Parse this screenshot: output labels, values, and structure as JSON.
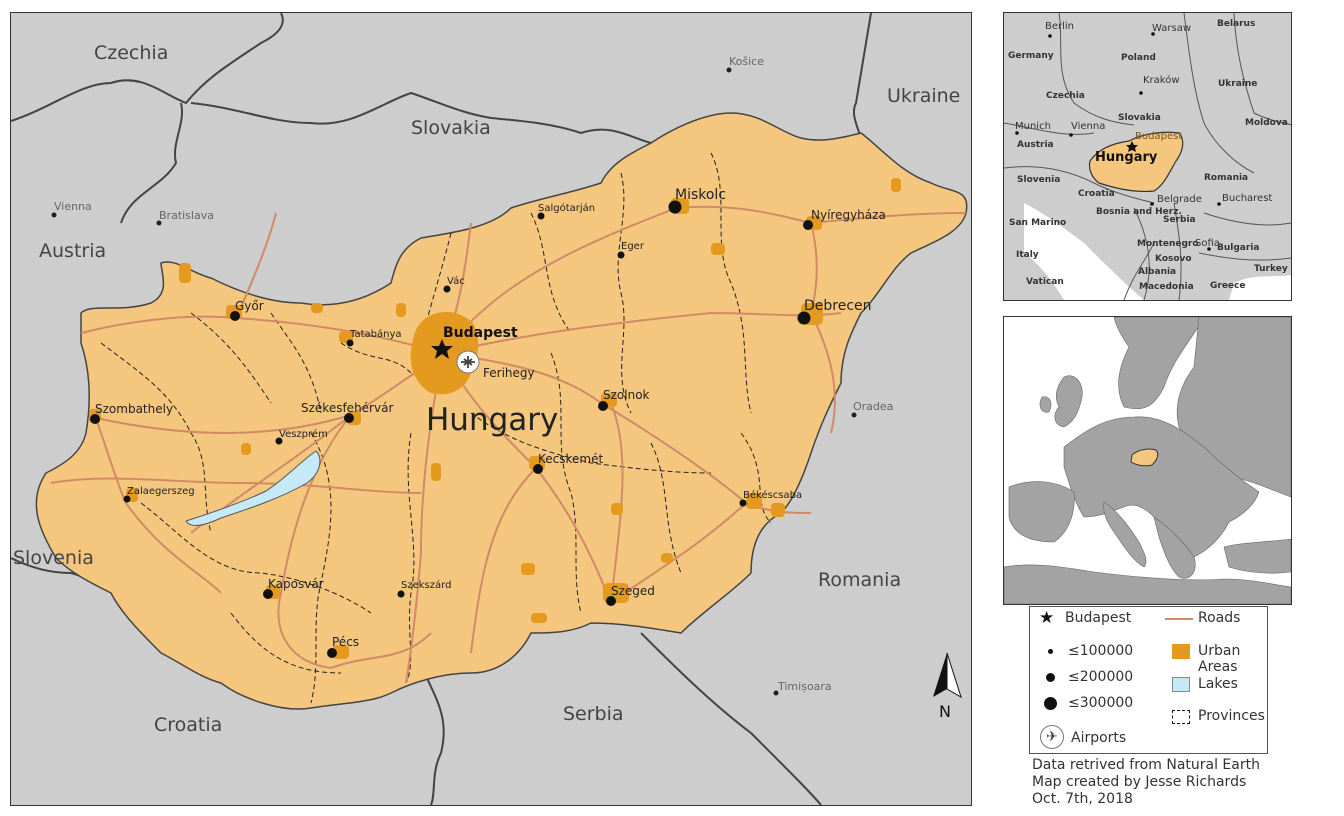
{
  "main_map": {
    "countries": {
      "czechia": "Czechia",
      "slovakia": "Slovakia",
      "ukraine": "Ukraine",
      "austria": "Austria",
      "slovenia": "Slovenia",
      "croatia": "Croatia",
      "serbia": "Serbia",
      "romania": "Romania",
      "hungary": "Hungary"
    },
    "foreign_cities": {
      "kosice": "Košice",
      "vienna": "Vienna",
      "bratislava": "Bratislava",
      "oradea": "Oradea",
      "timisoara": "Timișoara"
    },
    "capital": "Budapest",
    "airport": "Ferihegy",
    "cities": {
      "miskolc": "Miskolc",
      "debrecen": "Debrecen",
      "nyiregyhaza": "Nyíregyháza",
      "salgotarjan": "Salgótarján",
      "eger": "Eger",
      "vac": "Vác",
      "gyor": "Győr",
      "tatabanya": "Tatabánya",
      "szekesfehervar": "Székesfehérvár",
      "veszprem": "Veszprém",
      "szombathely": "Szombathely",
      "zalaegerszeg": "Zalaegerszeg",
      "szolnok": "Szolnok",
      "kecskemet": "Kecskemét",
      "bekescsaba": "Békéscsaba",
      "szeged": "Szeged",
      "kaposvar": "Kaposvár",
      "szekszard": "Szekszárd",
      "pecs": "Pécs"
    },
    "north_label": "N"
  },
  "inset_region": {
    "labels": {
      "berlin": "Berlin",
      "warsaw": "Warsaw",
      "belarus": "Belarus",
      "germany": "Germany",
      "poland": "Poland",
      "czechia": "Czechia",
      "krakow": "Kraków",
      "ukraine": "Ukraine",
      "slovakia": "Slovakia",
      "munich": "Munich",
      "vienna": "Vienna",
      "austria": "Austria",
      "budapest": "Budapest",
      "moldova": "Moldova",
      "hungary": "Hungary",
      "slovenia": "Slovenia",
      "romania": "Romania",
      "croatia": "Croatia",
      "san_marino": "San Marino",
      "bosnia": "Bosnia and Herz.",
      "belgrade": "Belgrade",
      "bucharest": "Bucharest",
      "serbia": "Serbia",
      "italy": "Italy",
      "montenegro": "Montenegro",
      "sofia": "Sofia",
      "kosovo": "Kosovo",
      "bulgaria": "Bulgaria",
      "vatican": "Vatican",
      "albania": "Albania",
      "turkey": "Turkey",
      "macedonia": "Macedonia",
      "greece": "Greece"
    }
  },
  "legend": {
    "capital": "Budapest",
    "roads": "Roads",
    "pop_small": "≤100000",
    "pop_medium": "≤200000",
    "pop_large": "≤300000",
    "urban": "Urban Areas",
    "lakes": "Lakes",
    "provinces": "Provinces",
    "airports": "Airports"
  },
  "colors": {
    "hungary_fill": "#f5c77e",
    "urban_fill": "#e39a1e",
    "lake_fill": "#c6e9f7",
    "road": "#d08a66",
    "neighbor_fill": "#cdcdcd",
    "border": "#444444"
  },
  "credits": {
    "line1": "Data retrived from Natural Earth",
    "line2": "Map created by Jesse Richards",
    "line3": "Oct. 7th, 2018"
  }
}
